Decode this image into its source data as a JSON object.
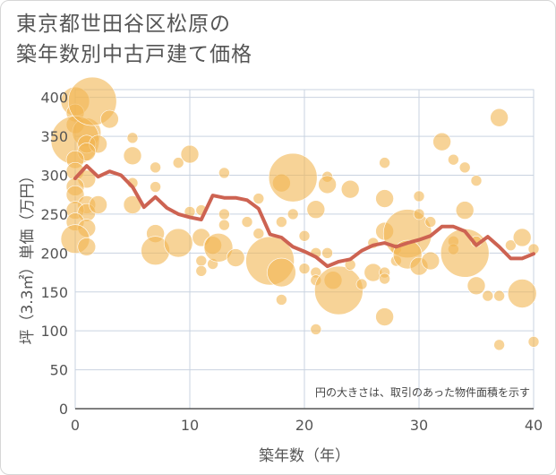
{
  "title": "東京都世田谷区松原の\n築年数別中古戸建て価格",
  "chart_data": {
    "type": "scatter",
    "title": "東京都世田谷区松原の築年数別中古戸建て価格",
    "xlabel": "築年数（年）",
    "ylabel": "坪（3.3㎡）単価（万円）",
    "xlim": [
      0,
      40
    ],
    "ylim": [
      0,
      410
    ],
    "xticks": [
      "0",
      "10",
      "20",
      "30",
      "40"
    ],
    "yticks": [
      "0",
      "50",
      "100",
      "150",
      "200",
      "250",
      "300",
      "350",
      "400"
    ],
    "grid": true,
    "note": "円の大きさは、取引のあった物件面積を示す",
    "colors": {
      "bubble": "#f2b652",
      "line": "#cd6352",
      "grid": "#c9d3e0",
      "axis": "#555555"
    },
    "bubbles": [
      {
        "x": 0,
        "y": 395,
        "s": 3
      },
      {
        "x": 0,
        "y": 380,
        "s": 2
      },
      {
        "x": 0,
        "y": 365,
        "s": 2
      },
      {
        "x": 1,
        "y": 355,
        "s": 3
      },
      {
        "x": 0,
        "y": 345,
        "s": 4
      },
      {
        "x": 1,
        "y": 340,
        "s": 2
      },
      {
        "x": 2,
        "y": 340,
        "s": 2
      },
      {
        "x": 1,
        "y": 330,
        "s": 2
      },
      {
        "x": 0,
        "y": 320,
        "s": 2
      },
      {
        "x": 0,
        "y": 305,
        "s": 2
      },
      {
        "x": 1,
        "y": 295,
        "s": 2
      },
      {
        "x": 0,
        "y": 285,
        "s": 2
      },
      {
        "x": 0,
        "y": 275,
        "s": 2
      },
      {
        "x": 1,
        "y": 262,
        "s": 2
      },
      {
        "x": 0,
        "y": 255,
        "s": 2
      },
      {
        "x": 1,
        "y": 252,
        "s": 2
      },
      {
        "x": 0,
        "y": 240,
        "s": 2
      },
      {
        "x": 1,
        "y": 232,
        "s": 2
      },
      {
        "x": 0,
        "y": 218,
        "s": 3
      },
      {
        "x": 1,
        "y": 208,
        "s": 2
      },
      {
        "x": 1.5,
        "y": 395,
        "s": 4
      },
      {
        "x": 3,
        "y": 372,
        "s": 2
      },
      {
        "x": 2,
        "y": 262,
        "s": 2
      },
      {
        "x": 5,
        "y": 348,
        "s": 1
      },
      {
        "x": 5,
        "y": 325,
        "s": 2
      },
      {
        "x": 5,
        "y": 290,
        "s": 1
      },
      {
        "x": 5,
        "y": 262,
        "s": 2
      },
      {
        "x": 7,
        "y": 310,
        "s": 1
      },
      {
        "x": 7,
        "y": 285,
        "s": 1
      },
      {
        "x": 7,
        "y": 225,
        "s": 2
      },
      {
        "x": 7,
        "y": 203,
        "s": 3
      },
      {
        "x": 9,
        "y": 316,
        "s": 1
      },
      {
        "x": 10,
        "y": 327,
        "s": 2
      },
      {
        "x": 9,
        "y": 213,
        "s": 3
      },
      {
        "x": 10,
        "y": 253,
        "s": 1
      },
      {
        "x": 11,
        "y": 255,
        "s": 1
      },
      {
        "x": 11,
        "y": 220,
        "s": 2
      },
      {
        "x": 11,
        "y": 190,
        "s": 1
      },
      {
        "x": 11,
        "y": 177,
        "s": 1
      },
      {
        "x": 12,
        "y": 210,
        "s": 2
      },
      {
        "x": 12,
        "y": 186,
        "s": 1
      },
      {
        "x": 12.5,
        "y": 207,
        "s": 3
      },
      {
        "x": 13,
        "y": 303,
        "s": 1
      },
      {
        "x": 13,
        "y": 250,
        "s": 1
      },
      {
        "x": 13,
        "y": 236,
        "s": 1
      },
      {
        "x": 14,
        "y": 194,
        "s": 2
      },
      {
        "x": 15,
        "y": 240,
        "s": 1
      },
      {
        "x": 16,
        "y": 270,
        "s": 1
      },
      {
        "x": 16,
        "y": 225,
        "s": 1
      },
      {
        "x": 17,
        "y": 190,
        "s": 4
      },
      {
        "x": 18,
        "y": 175,
        "s": 3
      },
      {
        "x": 18,
        "y": 290,
        "s": 2
      },
      {
        "x": 18,
        "y": 240,
        "s": 1
      },
      {
        "x": 18,
        "y": 140,
        "s": 1
      },
      {
        "x": 19,
        "y": 297,
        "s": 4
      },
      {
        "x": 19,
        "y": 250,
        "s": 1
      },
      {
        "x": 20,
        "y": 222,
        "s": 1
      },
      {
        "x": 20,
        "y": 180,
        "s": 1
      },
      {
        "x": 21,
        "y": 256,
        "s": 2
      },
      {
        "x": 21,
        "y": 200,
        "s": 1
      },
      {
        "x": 21,
        "y": 175,
        "s": 1
      },
      {
        "x": 21,
        "y": 165,
        "s": 1
      },
      {
        "x": 21,
        "y": 102,
        "s": 1
      },
      {
        "x": 22,
        "y": 298,
        "s": 1
      },
      {
        "x": 22,
        "y": 288,
        "s": 2
      },
      {
        "x": 22,
        "y": 200,
        "s": 1
      },
      {
        "x": 22.5,
        "y": 165,
        "s": 2
      },
      {
        "x": 23,
        "y": 152,
        "s": 4
      },
      {
        "x": 24,
        "y": 282,
        "s": 2
      },
      {
        "x": 24,
        "y": 185,
        "s": 1
      },
      {
        "x": 25,
        "y": 160,
        "s": 1
      },
      {
        "x": 26,
        "y": 213,
        "s": 1
      },
      {
        "x": 26,
        "y": 175,
        "s": 2
      },
      {
        "x": 27,
        "y": 316,
        "s": 1
      },
      {
        "x": 27,
        "y": 270,
        "s": 2
      },
      {
        "x": 27,
        "y": 228,
        "s": 2
      },
      {
        "x": 27,
        "y": 175,
        "s": 1
      },
      {
        "x": 27,
        "y": 167,
        "s": 1
      },
      {
        "x": 27,
        "y": 118,
        "s": 2
      },
      {
        "x": 28,
        "y": 205,
        "s": 1
      },
      {
        "x": 28,
        "y": 190,
        "s": 1
      },
      {
        "x": 29,
        "y": 225,
        "s": 4
      },
      {
        "x": 29,
        "y": 198,
        "s": 3
      },
      {
        "x": 30,
        "y": 273,
        "s": 1
      },
      {
        "x": 30,
        "y": 250,
        "s": 1
      },
      {
        "x": 30,
        "y": 183,
        "s": 2
      },
      {
        "x": 31,
        "y": 240,
        "s": 1
      },
      {
        "x": 31,
        "y": 190,
        "s": 2
      },
      {
        "x": 32,
        "y": 343,
        "s": 2
      },
      {
        "x": 33,
        "y": 320,
        "s": 1
      },
      {
        "x": 33,
        "y": 215,
        "s": 1
      },
      {
        "x": 33,
        "y": 205,
        "s": 1
      },
      {
        "x": 34,
        "y": 310,
        "s": 1
      },
      {
        "x": 34,
        "y": 255,
        "s": 2
      },
      {
        "x": 34,
        "y": 200,
        "s": 4
      },
      {
        "x": 35,
        "y": 293,
        "s": 1
      },
      {
        "x": 35,
        "y": 215,
        "s": 1
      },
      {
        "x": 35,
        "y": 158,
        "s": 2
      },
      {
        "x": 36,
        "y": 145,
        "s": 1
      },
      {
        "x": 37,
        "y": 374,
        "s": 2
      },
      {
        "x": 37,
        "y": 145,
        "s": 1
      },
      {
        "x": 37,
        "y": 82,
        "s": 1
      },
      {
        "x": 38,
        "y": 210,
        "s": 1
      },
      {
        "x": 39,
        "y": 220,
        "s": 2
      },
      {
        "x": 39,
        "y": 148,
        "s": 3
      },
      {
        "x": 40,
        "y": 205,
        "s": 1
      },
      {
        "x": 40,
        "y": 86,
        "s": 1
      }
    ],
    "series": [
      {
        "points": [
          [
            0,
            296
          ],
          [
            1,
            312
          ],
          [
            2,
            298
          ],
          [
            3,
            305
          ],
          [
            4,
            300
          ],
          [
            5,
            285
          ],
          [
            6,
            259
          ],
          [
            7,
            272
          ],
          [
            8,
            258
          ],
          [
            9,
            250
          ],
          [
            10,
            246
          ],
          [
            11,
            243
          ],
          [
            12,
            274
          ],
          [
            13,
            271
          ],
          [
            14,
            271
          ],
          [
            15,
            268
          ],
          [
            16,
            257
          ],
          [
            17,
            224
          ],
          [
            18,
            220
          ],
          [
            19,
            208
          ],
          [
            20,
            202
          ],
          [
            21,
            195
          ],
          [
            22,
            183
          ],
          [
            23,
            189
          ],
          [
            24,
            192
          ],
          [
            25,
            203
          ],
          [
            26,
            210
          ],
          [
            27,
            213
          ],
          [
            28,
            208
          ],
          [
            29,
            213
          ],
          [
            30,
            217
          ],
          [
            31,
            222
          ],
          [
            32,
            234
          ],
          [
            33,
            234
          ],
          [
            34,
            228
          ],
          [
            35,
            210
          ],
          [
            36,
            221
          ],
          [
            37,
            208
          ],
          [
            38,
            193
          ],
          [
            39,
            193
          ],
          [
            40,
            199
          ]
        ]
      }
    ]
  }
}
